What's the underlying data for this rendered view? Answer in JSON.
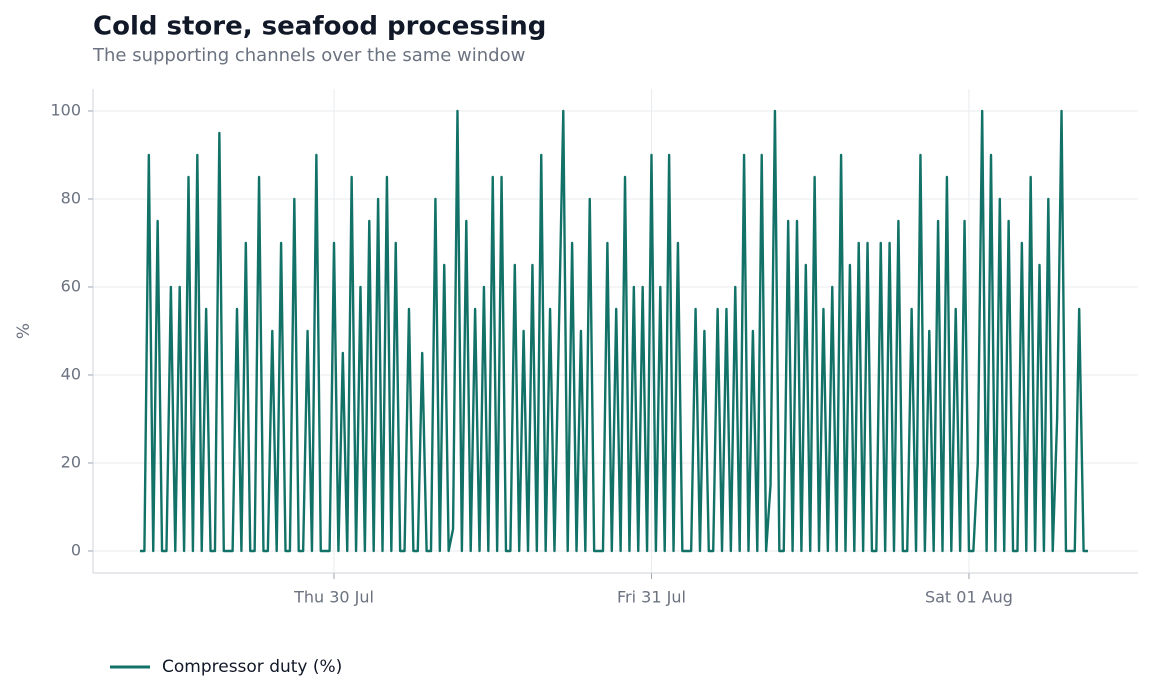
{
  "chart_data": {
    "type": "line",
    "title": "Cold store, seafood processing",
    "subtitle": "The supporting channels over the same window",
    "y_label": "%",
    "categories": [
      null,
      null,
      null,
      null,
      null,
      null,
      null,
      null,
      null,
      null,
      null,
      null,
      null,
      null,
      null,
      null,
      null,
      null,
      null,
      null,
      null,
      null,
      null,
      null,
      null,
      null,
      null,
      null,
      null,
      null,
      null,
      null,
      null,
      null,
      null,
      null,
      null,
      null,
      null,
      null,
      null,
      null,
      null,
      null,
      "Thu 30 Jul",
      null,
      null,
      null,
      null,
      null,
      null,
      null,
      null,
      null,
      null,
      null,
      null,
      null,
      null,
      null,
      null,
      null,
      null,
      null,
      null,
      null,
      null,
      null,
      null,
      null,
      null,
      null,
      null,
      null,
      null,
      null,
      null,
      null,
      null,
      null,
      null,
      null,
      null,
      null,
      null,
      null,
      null,
      null,
      null,
      null,
      null,
      null,
      null,
      null,
      null,
      null,
      null,
      null,
      null,
      null,
      null,
      null,
      null,
      null,
      null,
      null,
      null,
      null,
      null,
      null,
      null,
      null,
      null,
      null,
      null,
      null,
      "Fri 31 Jul",
      null,
      null,
      null,
      null,
      null,
      null,
      null,
      null,
      null,
      null,
      null,
      null,
      null,
      null,
      null,
      null,
      null,
      null,
      null,
      null,
      null,
      null,
      null,
      null,
      null,
      null,
      null,
      null,
      null,
      null,
      null,
      null,
      null,
      null,
      null,
      null,
      null,
      null,
      null,
      null,
      null,
      null,
      null,
      null,
      null,
      null,
      null,
      null,
      null,
      null,
      null,
      null,
      null,
      null,
      null,
      null,
      null,
      null,
      null,
      null,
      null,
      null,
      null,
      null,
      null,
      null,
      null,
      null,
      null,
      null,
      null,
      "Sat 01 Aug",
      null,
      null,
      null,
      null,
      null,
      null,
      null,
      null,
      null,
      null,
      null,
      null,
      null,
      null,
      null,
      null,
      null,
      null,
      null,
      null,
      null,
      null,
      null,
      null,
      null,
      null,
      null
    ],
    "series": [
      {
        "name": "Compressor duty (%)",
        "color": "#137268",
        "values": [
          0,
          0,
          90,
          0,
          75,
          0,
          0,
          60,
          0,
          60,
          0,
          85,
          0,
          90,
          0,
          55,
          0,
          0,
          95,
          0,
          0,
          0,
          55,
          0,
          70,
          0,
          0,
          85,
          0,
          0,
          50,
          0,
          70,
          0,
          0,
          80,
          0,
          0,
          50,
          0,
          90,
          0,
          0,
          0,
          70,
          0,
          45,
          0,
          85,
          0,
          60,
          0,
          75,
          0,
          80,
          0,
          85,
          0,
          70,
          0,
          0,
          55,
          0,
          0,
          45,
          0,
          0,
          80,
          0,
          65,
          0,
          5,
          100,
          0,
          75,
          0,
          55,
          0,
          60,
          0,
          85,
          0,
          85,
          0,
          0,
          65,
          0,
          50,
          0,
          65,
          0,
          90,
          0,
          55,
          0,
          50,
          100,
          0,
          70,
          0,
          50,
          0,
          80,
          0,
          0,
          0,
          70,
          0,
          55,
          0,
          85,
          0,
          60,
          0,
          60,
          0,
          90,
          0,
          60,
          0,
          90,
          0,
          70,
          0,
          0,
          0,
          55,
          0,
          50,
          0,
          0,
          55,
          0,
          55,
          0,
          60,
          0,
          90,
          0,
          50,
          0,
          90,
          0,
          15,
          100,
          0,
          0,
          75,
          0,
          75,
          0,
          65,
          0,
          85,
          0,
          55,
          0,
          60,
          0,
          90,
          0,
          65,
          0,
          70,
          0,
          70,
          0,
          0,
          70,
          0,
          70,
          0,
          75,
          0,
          0,
          55,
          0,
          90,
          0,
          50,
          0,
          75,
          0,
          85,
          0,
          55,
          0,
          75,
          0,
          0,
          20,
          100,
          0,
          90,
          0,
          80,
          0,
          75,
          0,
          0,
          70,
          0,
          85,
          0,
          65,
          0,
          80,
          0,
          30,
          100,
          0,
          0,
          0,
          55,
          0,
          0
        ]
      }
    ],
    "ylim": [
      -5,
      105
    ],
    "yticks": [
      0,
      20,
      40,
      60,
      80,
      100
    ],
    "grid": true,
    "legend": "bottom-left"
  }
}
